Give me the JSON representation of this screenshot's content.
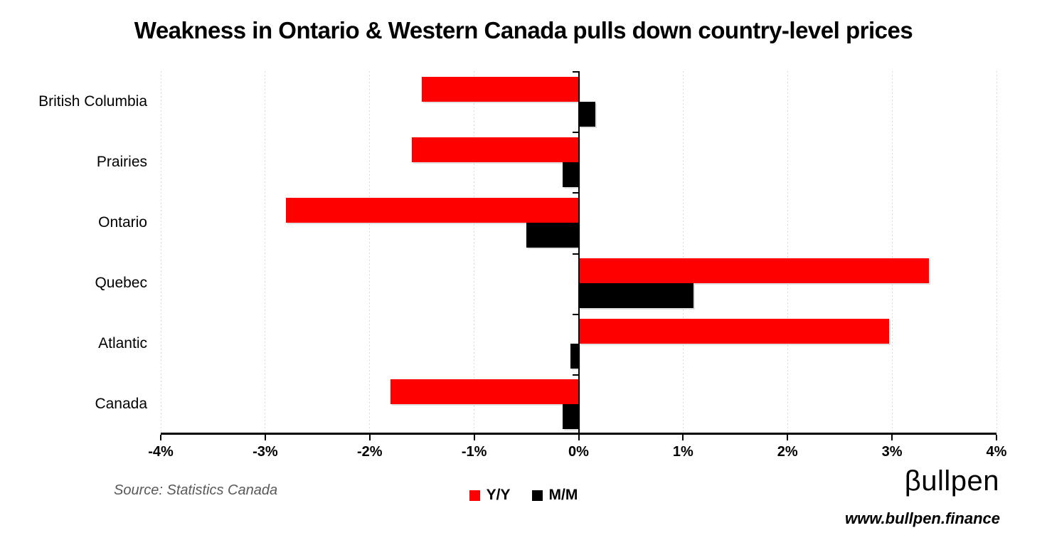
{
  "title": "Weakness in Ontario & Western Canada pulls down country-level prices",
  "chart_data": {
    "type": "bar",
    "orientation": "horizontal",
    "title": "Weakness in Ontario & Western Canada pulls down country-level prices",
    "categories": [
      "British Columbia",
      "Prairies",
      "Ontario",
      "Quebec",
      "Atlantic",
      "Canada"
    ],
    "series": [
      {
        "name": "Y/Y",
        "color": "#ff0000",
        "values": [
          -1.5,
          -1.6,
          -2.8,
          3.35,
          2.97,
          -1.8
        ]
      },
      {
        "name": "M/M",
        "color": "#000000",
        "values": [
          0.16,
          -0.15,
          -0.5,
          1.1,
          -0.08,
          -0.15
        ]
      }
    ],
    "xlabel": "",
    "ylabel": "",
    "xlim": [
      -4,
      4
    ],
    "x_tick_values": [
      -4,
      -3,
      -2,
      -1,
      0,
      1,
      2,
      3,
      4
    ],
    "x_tick_labels": [
      "-4%",
      "-3%",
      "-2%",
      "-1%",
      "0%",
      "1%",
      "2%",
      "3%",
      "4%"
    ],
    "grid": "vertical-dotted",
    "legend_position": "bottom-center"
  },
  "footer": {
    "source": "Source: Statistics Canada",
    "logo_text": "βullpen",
    "website": "www.bullpen.finance"
  },
  "colors": {
    "yy_series": "#ff0000",
    "mm_series": "#000000",
    "gridline": "#d9d9d9",
    "axis": "#000000",
    "source_text": "#595959"
  }
}
